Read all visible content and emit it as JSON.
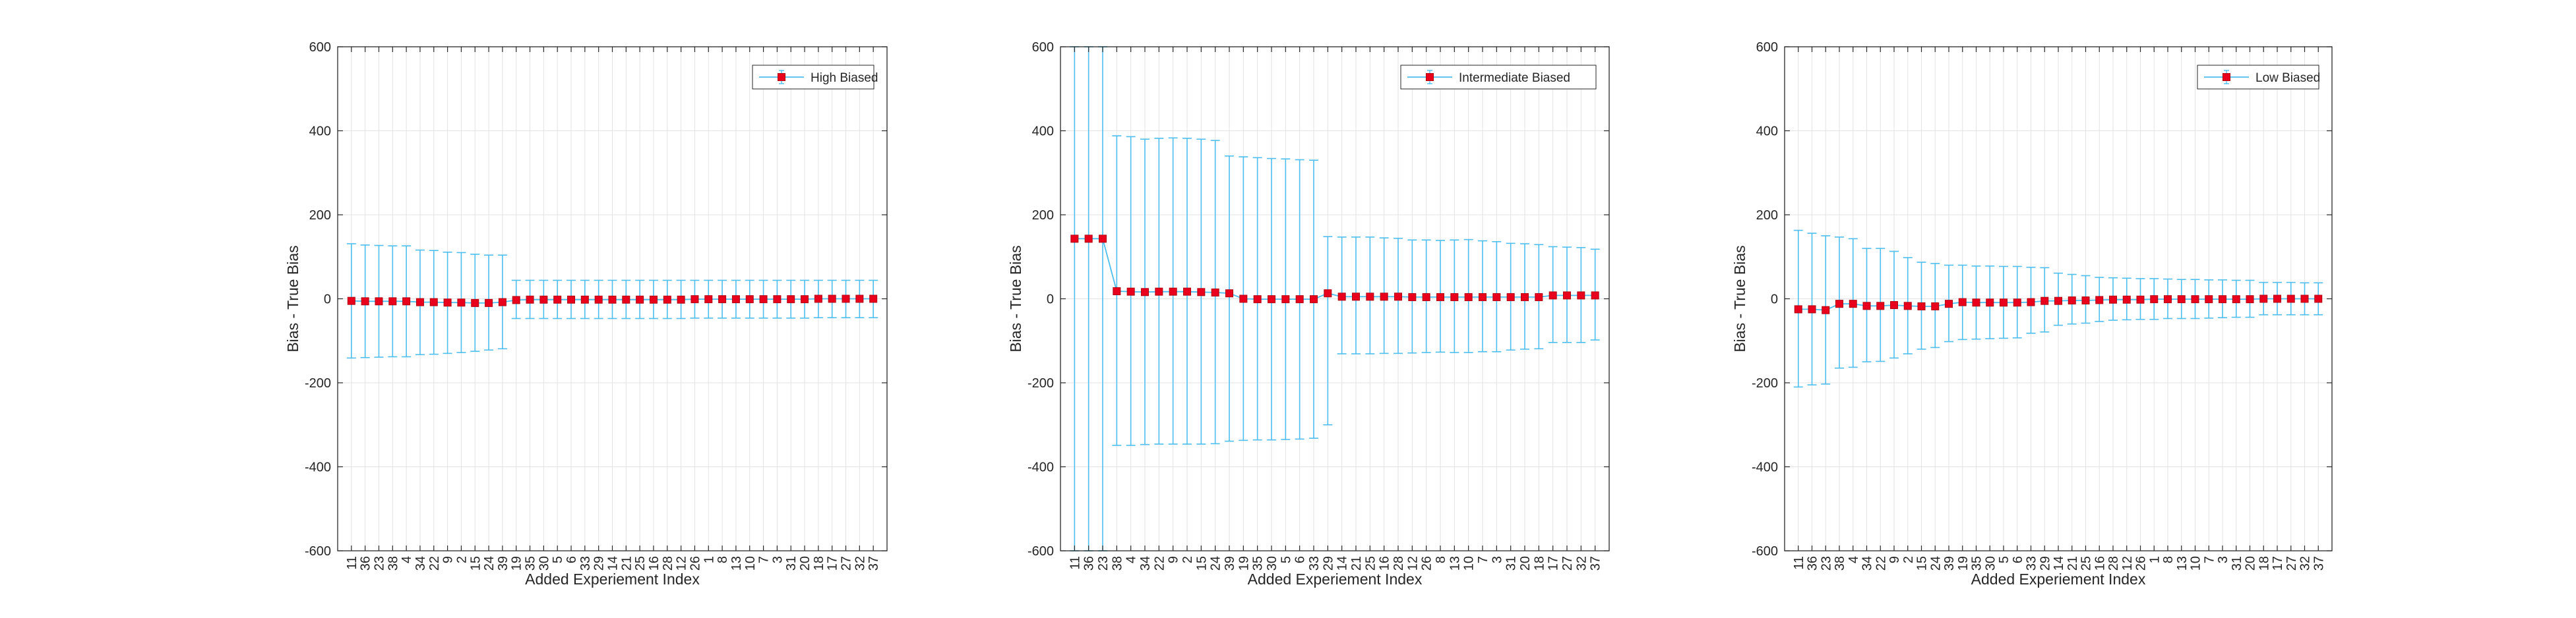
{
  "chart_data": [
    {
      "type": "line",
      "xlabel": "Added Experiement Index",
      "ylabel": "Bias - True Bias",
      "ylim": [
        -600,
        600
      ],
      "yticks": [
        -600,
        -400,
        -200,
        0,
        200,
        400,
        600
      ],
      "grid": true,
      "legend_position": "top-right",
      "colors": {
        "line": "#4DBEEE",
        "marker": "#E8001C",
        "marker_edge": "#B00010"
      },
      "categories": [
        "11",
        "36",
        "23",
        "38",
        "4",
        "34",
        "22",
        "9",
        "2",
        "15",
        "24",
        "39",
        "19",
        "35",
        "30",
        "5",
        "6",
        "33",
        "29",
        "14",
        "21",
        "25",
        "16",
        "28",
        "12",
        "26",
        "1",
        "8",
        "13",
        "10",
        "7",
        "3",
        "31",
        "20",
        "18",
        "17",
        "27",
        "32",
        "37"
      ],
      "series": [
        {
          "name": "High Biased",
          "values": [
            -5,
            -6,
            -6,
            -6,
            -6,
            -8,
            -8,
            -9,
            -9,
            -10,
            -10,
            -8,
            -3,
            -2,
            -2,
            -2,
            -2,
            -2,
            -2,
            -2,
            -2,
            -2,
            -2,
            -2,
            -2,
            -1,
            -1,
            -1,
            -1,
            -1,
            -1,
            -1,
            -1,
            -1,
            0,
            0,
            0,
            0,
            0
          ],
          "upper": [
            131,
            128,
            127,
            126,
            126,
            116,
            115,
            111,
            110,
            106,
            104,
            104,
            44,
            44,
            44,
            44,
            44,
            44,
            44,
            44,
            44,
            44,
            44,
            44,
            44,
            44,
            44,
            44,
            44,
            44,
            44,
            44,
            44,
            44,
            44,
            44,
            44,
            44,
            44
          ],
          "lower": [
            -141,
            -140,
            -139,
            -138,
            -138,
            -133,
            -132,
            -130,
            -128,
            -125,
            -122,
            -119,
            -47,
            -47,
            -47,
            -47,
            -47,
            -47,
            -47,
            -47,
            -47,
            -47,
            -47,
            -47,
            -47,
            -46,
            -46,
            -46,
            -46,
            -46,
            -46,
            -46,
            -46,
            -46,
            -45,
            -45,
            -45,
            -45,
            -45
          ]
        }
      ]
    },
    {
      "type": "line",
      "xlabel": "Added Experiement Index",
      "ylabel": "Bias - True Bias",
      "ylim": [
        -600,
        600
      ],
      "yticks": [
        -600,
        -400,
        -200,
        0,
        200,
        400,
        600
      ],
      "grid": true,
      "legend_position": "top-right",
      "colors": {
        "line": "#4DBEEE",
        "marker": "#E8001C",
        "marker_edge": "#B00010"
      },
      "categories": [
        "11",
        "36",
        "23",
        "38",
        "4",
        "34",
        "22",
        "9",
        "2",
        "15",
        "24",
        "39",
        "19",
        "35",
        "30",
        "5",
        "6",
        "33",
        "29",
        "14",
        "21",
        "25",
        "16",
        "28",
        "12",
        "26",
        "8",
        "13",
        "10",
        "7",
        "3",
        "31",
        "20",
        "18",
        "17",
        "27",
        "32",
        "37"
      ],
      "series": [
        {
          "name": "Intermediate Biased",
          "values": [
            143,
            143,
            143,
            18,
            17,
            16,
            17,
            17,
            17,
            16,
            15,
            13,
            0,
            -1,
            -1,
            -1,
            -1,
            -1,
            13,
            5,
            5,
            5,
            5,
            5,
            4,
            4,
            4,
            4,
            4,
            4,
            4,
            4,
            4,
            4,
            8,
            8,
            8,
            8
          ],
          "upper": [
            600,
            600,
            600,
            388,
            386,
            380,
            382,
            383,
            382,
            380,
            377,
            340,
            338,
            336,
            334,
            333,
            331,
            330,
            148,
            147,
            147,
            147,
            145,
            144,
            140,
            140,
            139,
            140,
            141,
            138,
            136,
            132,
            131,
            129,
            124,
            123,
            122,
            118
          ],
          "lower": [
            -600,
            -600,
            -600,
            -349,
            -349,
            -347,
            -346,
            -346,
            -346,
            -346,
            -345,
            -339,
            -337,
            -336,
            -336,
            -335,
            -334,
            -332,
            -300,
            -131,
            -131,
            -131,
            -130,
            -130,
            -129,
            -128,
            -127,
            -128,
            -128,
            -126,
            -126,
            -122,
            -120,
            -119,
            -104,
            -104,
            -104,
            -98
          ]
        }
      ]
    },
    {
      "type": "line",
      "xlabel": "Added Experiement Index",
      "ylabel": "Bias - True Bias",
      "ylim": [
        -600,
        600
      ],
      "yticks": [
        -600,
        -400,
        -200,
        0,
        200,
        400,
        600
      ],
      "grid": true,
      "legend_position": "top-right",
      "colors": {
        "line": "#4DBEEE",
        "marker": "#E8001C",
        "marker_edge": "#B00010"
      },
      "categories": [
        "11",
        "36",
        "23",
        "38",
        "4",
        "34",
        "22",
        "9",
        "2",
        "15",
        "24",
        "39",
        "19",
        "35",
        "30",
        "5",
        "6",
        "33",
        "29",
        "14",
        "21",
        "25",
        "16",
        "28",
        "12",
        "26",
        "1",
        "8",
        "13",
        "10",
        "7",
        "3",
        "31",
        "20",
        "18",
        "17",
        "27",
        "32",
        "37"
      ],
      "series": [
        {
          "name": "Low Biased",
          "values": [
            -25,
            -25,
            -27,
            -12,
            -12,
            -17,
            -17,
            -15,
            -17,
            -18,
            -18,
            -12,
            -8,
            -9,
            -9,
            -9,
            -9,
            -8,
            -5,
            -5,
            -4,
            -4,
            -3,
            -2,
            -2,
            -2,
            -1,
            -1,
            -1,
            -1,
            -1,
            -1,
            -1,
            -1,
            0,
            0,
            0,
            0,
            0
          ],
          "upper": [
            163,
            156,
            150,
            147,
            143,
            120,
            120,
            113,
            98,
            87,
            84,
            80,
            80,
            78,
            78,
            77,
            77,
            75,
            74,
            61,
            58,
            55,
            51,
            50,
            49,
            48,
            48,
            47,
            46,
            46,
            45,
            45,
            44,
            44,
            39,
            39,
            39,
            38,
            38
          ],
          "lower": [
            -210,
            -205,
            -203,
            -165,
            -163,
            -150,
            -149,
            -141,
            -131,
            -120,
            -116,
            -102,
            -97,
            -96,
            -95,
            -94,
            -93,
            -82,
            -79,
            -63,
            -60,
            -58,
            -54,
            -51,
            -50,
            -49,
            -49,
            -47,
            -47,
            -47,
            -46,
            -45,
            -44,
            -44,
            -38,
            -38,
            -38,
            -38,
            -38
          ]
        }
      ]
    }
  ]
}
